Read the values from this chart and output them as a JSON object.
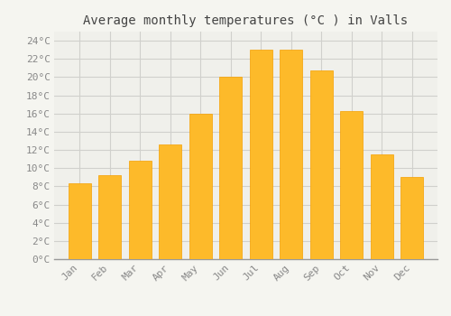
{
  "title": "Average monthly temperatures (°C ) in Valls",
  "months": [
    "Jan",
    "Feb",
    "Mar",
    "Apr",
    "May",
    "Jun",
    "Jul",
    "Aug",
    "Sep",
    "Oct",
    "Nov",
    "Dec"
  ],
  "values": [
    8.3,
    9.2,
    10.8,
    12.6,
    16.0,
    20.0,
    23.0,
    23.0,
    20.7,
    16.3,
    11.5,
    9.0
  ],
  "bar_color_top": "#FDBA2A",
  "bar_color_bottom": "#F5A000",
  "background_color": "#f5f5f0",
  "plot_bg_color": "#f0f0eb",
  "grid_color": "#d0d0cc",
  "ylim": [
    0,
    25
  ],
  "yticks": [
    0,
    2,
    4,
    6,
    8,
    10,
    12,
    14,
    16,
    18,
    20,
    22,
    24
  ],
  "title_fontsize": 10,
  "tick_fontsize": 8,
  "tick_label_color": "#888888",
  "title_color": "#444444",
  "font_family": "monospace",
  "bar_width": 0.75
}
